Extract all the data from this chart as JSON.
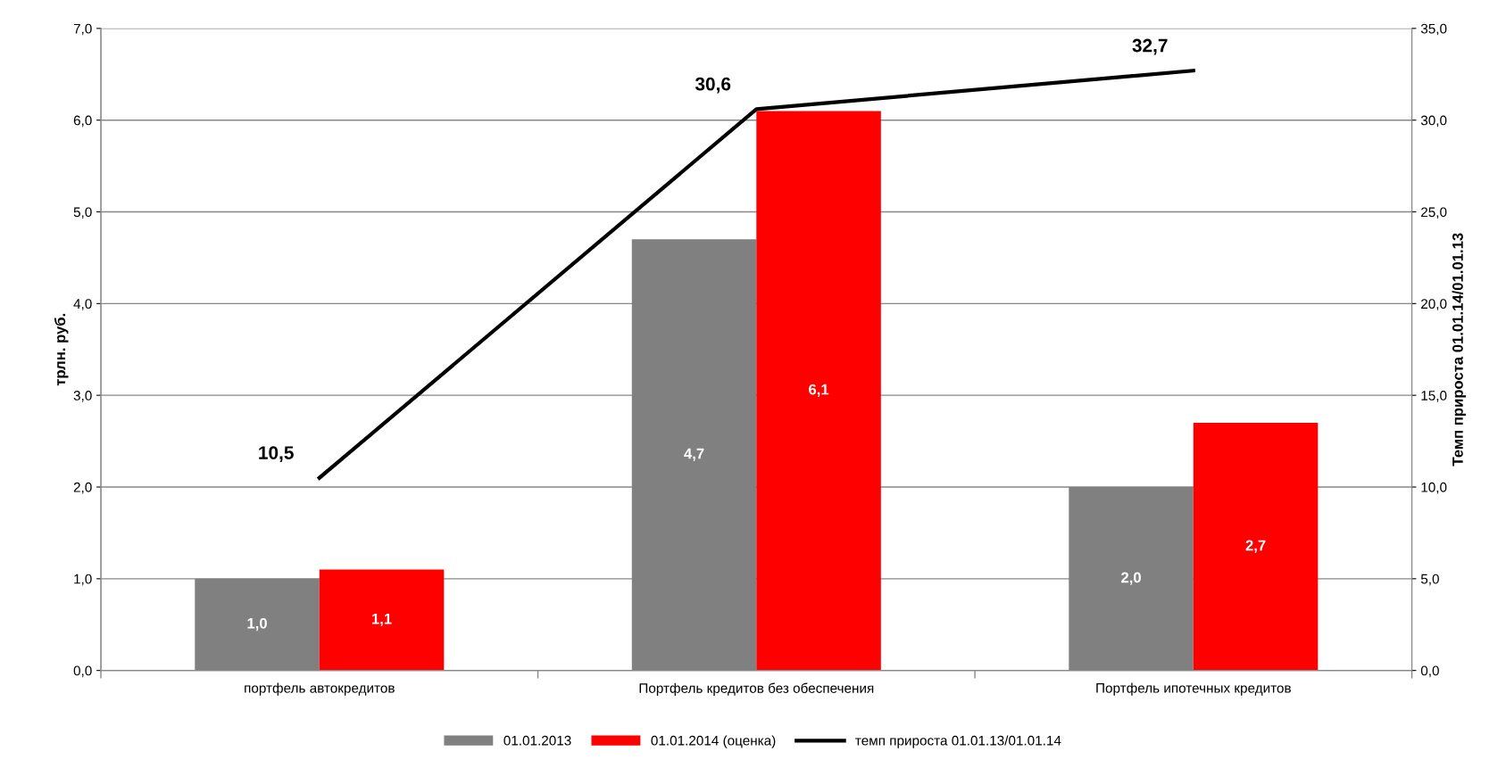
{
  "chart_data": {
    "type": "bar",
    "categories": [
      "портфель автокредитов",
      "Портфель кредитов без обеспечения",
      "Портфель ипотечных кредитов"
    ],
    "ylabel": "трлн. руб.",
    "y2label": "Темп прироста 01.01.14/01.01.13",
    "series": [
      {
        "name": "01.01.2013",
        "color": "#808080",
        "values": [
          1.0,
          4.7,
          2.0
        ],
        "value_labels": [
          "1,0",
          "4,7",
          "2,0"
        ]
      },
      {
        "name": "01.01.2014 (оценка)",
        "color": "#ff0000",
        "values": [
          1.1,
          6.1,
          2.7
        ],
        "value_labels": [
          "1,1",
          "6,1",
          "2,7"
        ]
      },
      {
        "name": "темп прироста 01.01.13/01.01.14",
        "type": "line",
        "axis": "y2",
        "color": "#000000",
        "values": [
          10.5,
          30.6,
          32.7
        ],
        "value_labels": [
          "10,5",
          "30,6",
          "32,7"
        ]
      }
    ],
    "ylim": [
      0,
      7
    ],
    "yticks": [
      {
        "value": 0,
        "label": "0,0"
      },
      {
        "value": 1,
        "label": "1,0"
      },
      {
        "value": 2,
        "label": "2,0"
      },
      {
        "value": 3,
        "label": "3,0"
      },
      {
        "value": 4,
        "label": "4,0"
      },
      {
        "value": 5,
        "label": "5,0"
      },
      {
        "value": 6,
        "label": "6,0"
      },
      {
        "value": 7,
        "label": "7,0"
      }
    ],
    "y2lim": [
      0,
      35
    ],
    "y2ticks": [
      {
        "value": 0,
        "label": "0,0"
      },
      {
        "value": 5,
        "label": "5,0"
      },
      {
        "value": 10,
        "label": "10,0"
      },
      {
        "value": 15,
        "label": "15,0"
      },
      {
        "value": 20,
        "label": "20,0"
      },
      {
        "value": 25,
        "label": "25,0"
      },
      {
        "value": 30,
        "label": "30,0"
      },
      {
        "value": 35,
        "label": "35,0"
      }
    ],
    "grid": "y",
    "legend": "bottom",
    "marker": "none",
    "line_style": "solid"
  }
}
